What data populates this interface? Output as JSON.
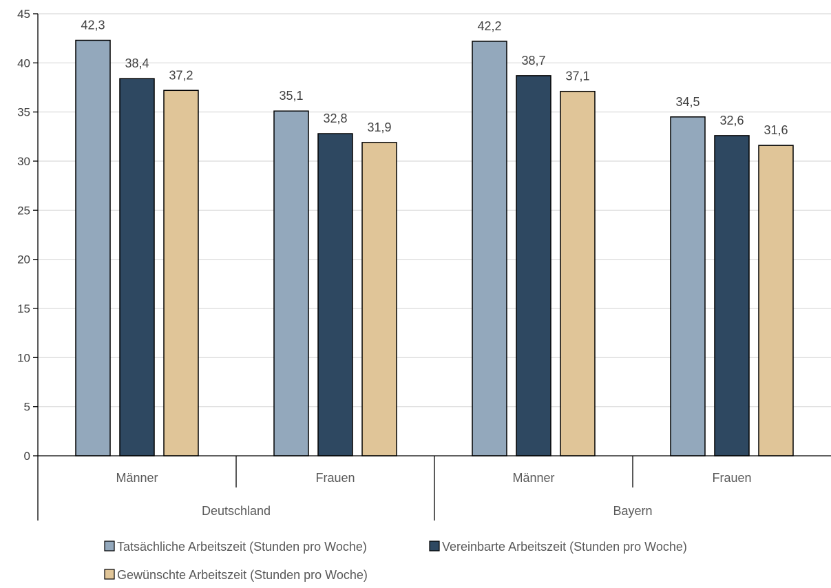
{
  "chart_data": {
    "type": "bar",
    "groups": [
      {
        "label": "Deutschland",
        "categories": [
          "Männer",
          "Frauen"
        ]
      },
      {
        "label": "Bayern",
        "categories": [
          "Männer",
          "Frauen"
        ]
      }
    ],
    "categories": [
      "Männer",
      "Frauen",
      "Männer",
      "Frauen"
    ],
    "series": [
      {
        "name": "Tatsächliche Arbeitszeit (Stunden pro Woche)",
        "color": "#93a8bc",
        "values": [
          42.3,
          35.1,
          42.2,
          34.5
        ],
        "labels": [
          "42,3",
          "35,1",
          "42,2",
          "34,5"
        ]
      },
      {
        "name": "Vereinbarte Arbeitszeit (Stunden pro Woche)",
        "color": "#2e4861",
        "values": [
          38.4,
          32.8,
          38.7,
          32.6
        ],
        "labels": [
          "38,4",
          "32,8",
          "38,7",
          "32,6"
        ]
      },
      {
        "name": "Gewünschte Arbeitszeit (Stunden pro Woche)",
        "color": "#e0c598",
        "values": [
          37.2,
          31.9,
          37.1,
          31.6
        ],
        "labels": [
          "37,2",
          "31,9",
          "37,1",
          "31,6"
        ]
      }
    ],
    "ylim": [
      0,
      45
    ],
    "yticks": [
      0,
      5,
      10,
      15,
      20,
      25,
      30,
      35,
      40,
      45
    ],
    "grid": true,
    "legend_position": "bottom"
  }
}
